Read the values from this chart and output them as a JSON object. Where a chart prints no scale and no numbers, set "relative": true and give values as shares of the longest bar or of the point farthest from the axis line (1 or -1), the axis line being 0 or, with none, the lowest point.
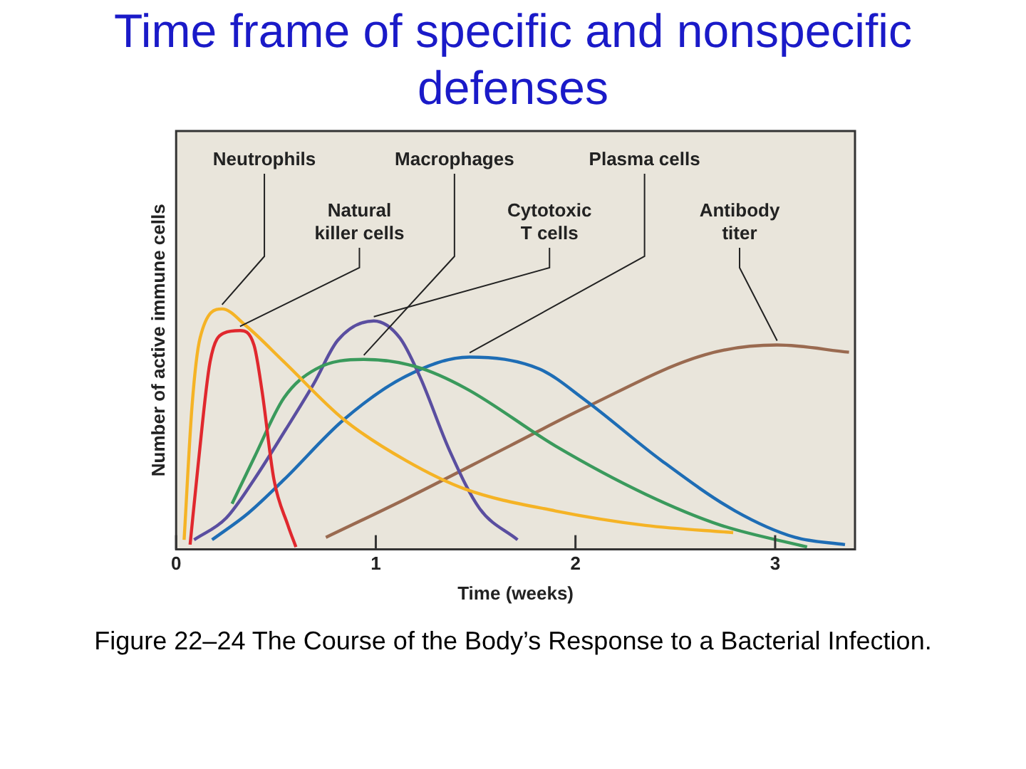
{
  "chart_data": {
    "type": "line",
    "title": "Time frame of specific and nonspecific defenses",
    "xlabel": "Time (weeks)",
    "ylabel": "Number of active immune cells",
    "relative": true,
    "xlim": [
      0,
      3.4
    ],
    "xticks": [
      0,
      1,
      2,
      3
    ],
    "grid": false,
    "legend": false,
    "marker": "none",
    "line_style": "solid",
    "annotations": [
      "Figure 22–24 The Course of the Body’s Response to a Bacterial Infection."
    ],
    "series": [
      {
        "name": "Neutrophils",
        "color": "#f5b325",
        "x": [
          0.04,
          0.08,
          0.12,
          0.23,
          0.35,
          0.54,
          0.84,
          1.15,
          1.45,
          1.9,
          2.35,
          2.79
        ],
        "values": [
          0.04,
          0.6,
          0.88,
          1.0,
          0.93,
          0.78,
          0.54,
          0.37,
          0.25,
          0.16,
          0.1,
          0.07
        ]
      },
      {
        "name": "Natural killer cells",
        "color": "#e0282e",
        "x": [
          0.07,
          0.11,
          0.17,
          0.24,
          0.32,
          0.39,
          0.43,
          0.49,
          0.56,
          0.6
        ],
        "values": [
          0.02,
          0.35,
          0.78,
          0.9,
          0.91,
          0.85,
          0.66,
          0.29,
          0.1,
          0.01
        ]
      },
      {
        "name": "Macrophages",
        "color": "#3a9a5c",
        "x": [
          0.28,
          0.39,
          0.54,
          0.7,
          0.94,
          1.2,
          1.45,
          1.9,
          2.35,
          2.73,
          3.16
        ],
        "values": [
          0.19,
          0.38,
          0.63,
          0.75,
          0.79,
          0.76,
          0.67,
          0.43,
          0.23,
          0.1,
          0.01
        ]
      },
      {
        "name": "Cytotoxic T cells",
        "color": "#5a4ea0",
        "x": [
          0.09,
          0.25,
          0.39,
          0.55,
          0.69,
          0.81,
          0.99,
          1.12,
          1.22,
          1.37,
          1.52,
          1.71
        ],
        "values": [
          0.04,
          0.13,
          0.29,
          0.5,
          0.69,
          0.87,
          0.95,
          0.88,
          0.72,
          0.41,
          0.17,
          0.04
        ]
      },
      {
        "name": "Plasma cells",
        "color": "#1e6db5",
        "x": [
          0.18,
          0.36,
          0.54,
          0.84,
          1.15,
          1.47,
          1.82,
          2.05,
          2.43,
          2.8,
          3.1,
          3.35
        ],
        "values": [
          0.04,
          0.15,
          0.29,
          0.54,
          0.72,
          0.8,
          0.75,
          0.62,
          0.37,
          0.16,
          0.05,
          0.02
        ]
      },
      {
        "name": "Antibody titer",
        "color": "#9a6a50",
        "x": [
          0.75,
          1.15,
          1.67,
          2.05,
          2.65,
          3.01,
          3.37
        ],
        "values": [
          0.05,
          0.21,
          0.43,
          0.59,
          0.81,
          0.85,
          0.82
        ]
      }
    ]
  }
}
